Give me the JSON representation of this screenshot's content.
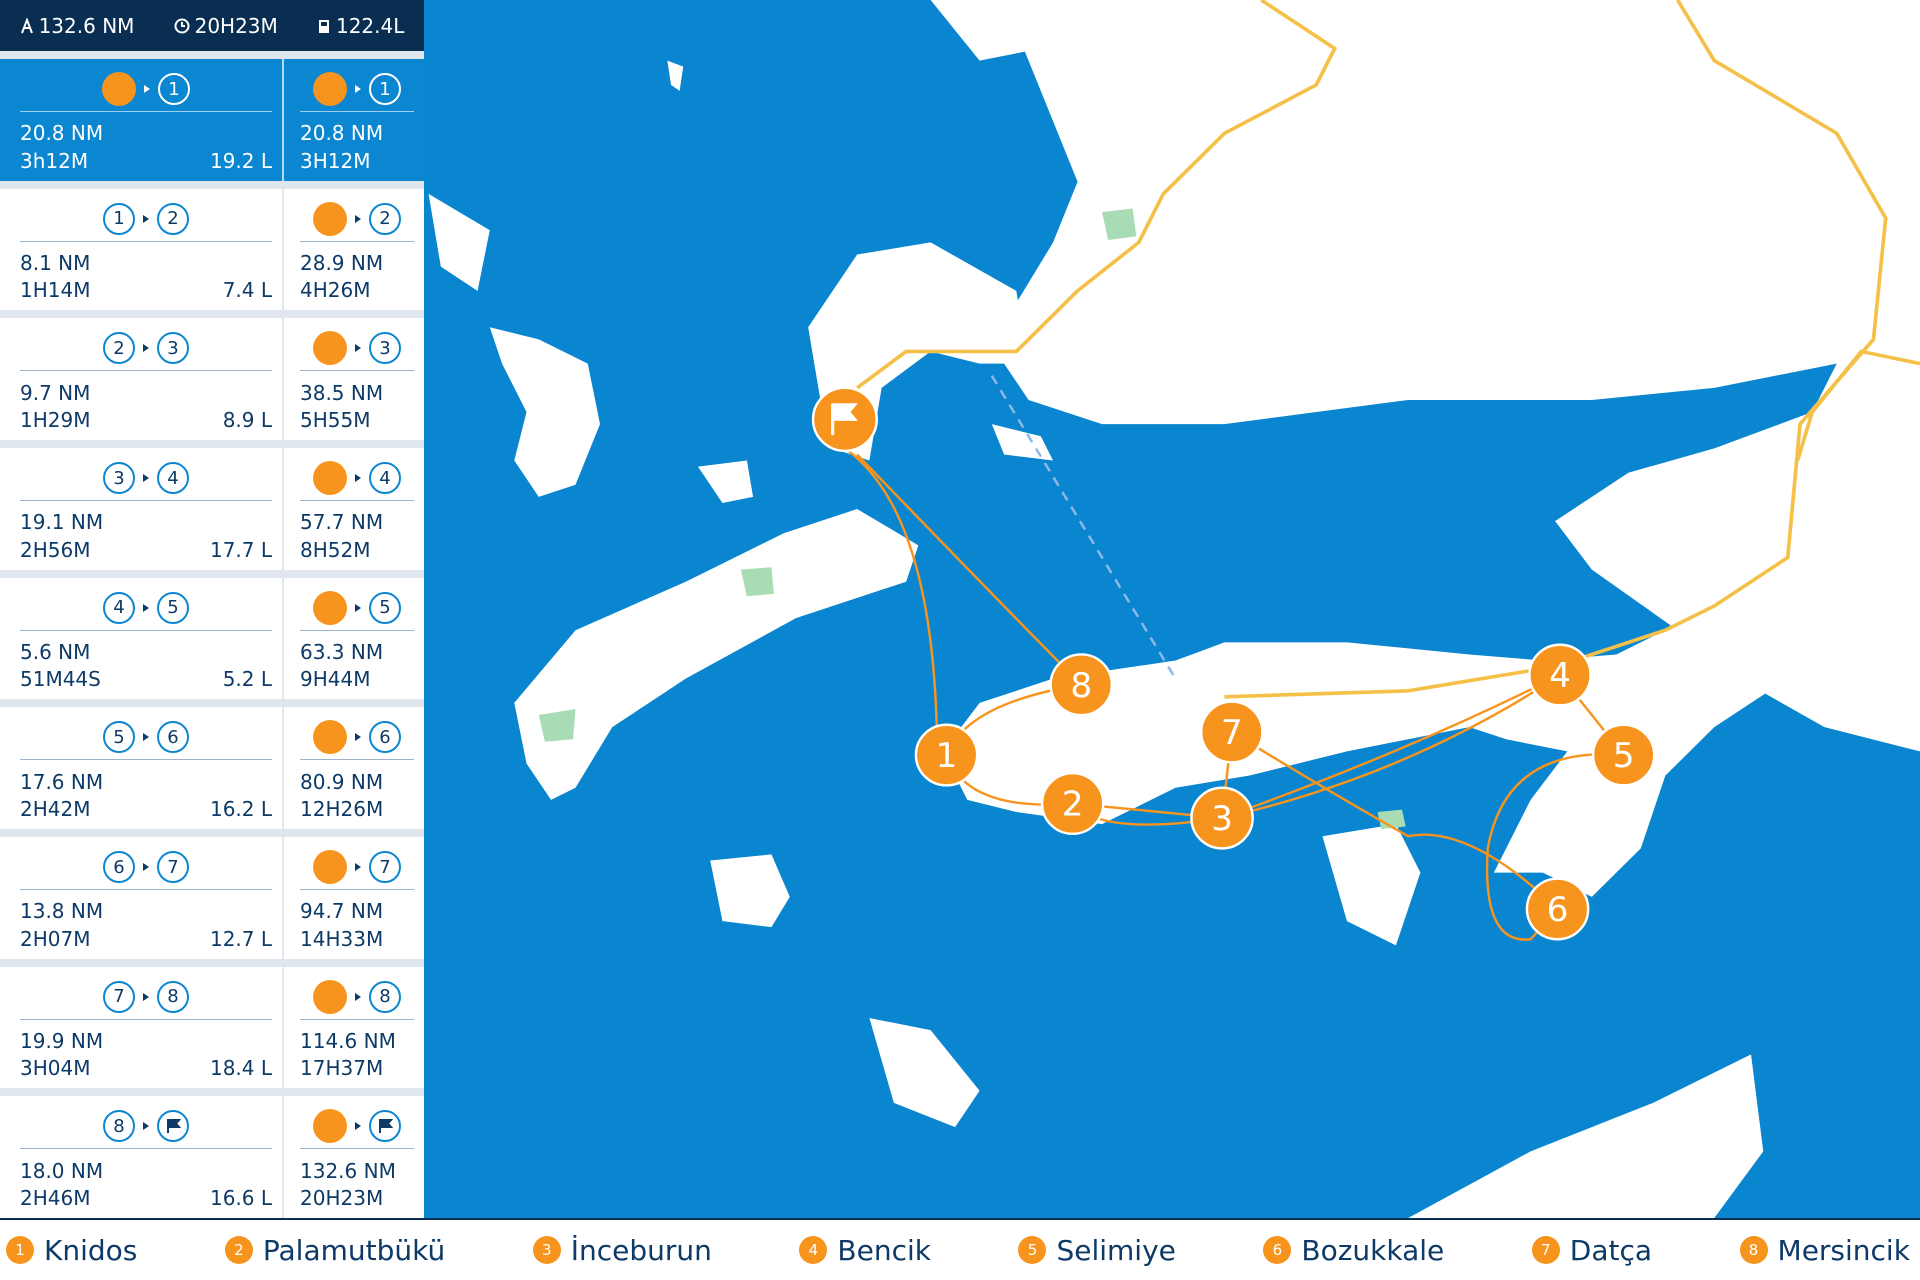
{
  "header": {
    "distance": "132.6 NM",
    "duration": "20H23M",
    "fuel": "122.4L"
  },
  "legs": [
    {
      "from": null,
      "to": 1,
      "distance": "20.8 NM",
      "duration": "3h12M",
      "fuel": "19.2 L",
      "cum_distance": "20.8 NM",
      "cum_duration": "3H12M"
    },
    {
      "from": 1,
      "to": 2,
      "distance": "8.1 NM",
      "duration": "1H14M",
      "fuel": "7.4 L",
      "cum_distance": "28.9 NM",
      "cum_duration": "4H26M"
    },
    {
      "from": 2,
      "to": 3,
      "distance": "9.7 NM",
      "duration": "1H29M",
      "fuel": "8.9 L",
      "cum_distance": "38.5 NM",
      "cum_duration": "5H55M"
    },
    {
      "from": 3,
      "to": 4,
      "distance": "19.1 NM",
      "duration": "2H56M",
      "fuel": "17.7 L",
      "cum_distance": "57.7 NM",
      "cum_duration": "8H52M"
    },
    {
      "from": 4,
      "to": 5,
      "distance": "5.6 NM",
      "duration": "51M44S",
      "fuel": "5.2 L",
      "cum_distance": "63.3 NM",
      "cum_duration": "9H44M"
    },
    {
      "from": 5,
      "to": 6,
      "distance": "17.6 NM",
      "duration": "2H42M",
      "fuel": "16.2 L",
      "cum_distance": "80.9 NM",
      "cum_duration": "12H26M"
    },
    {
      "from": 6,
      "to": 7,
      "distance": "13.8 NM",
      "duration": "2H07M",
      "fuel": "12.7 L",
      "cum_distance": "94.7 NM",
      "cum_duration": "14H33M"
    },
    {
      "from": 7,
      "to": 8,
      "distance": "19.9 NM",
      "duration": "3H04M",
      "fuel": "18.4 L",
      "cum_distance": "114.6 NM",
      "cum_duration": "17H37M"
    },
    {
      "from": 8,
      "to": null,
      "distance": "18.0 NM",
      "duration": "2H46M",
      "fuel": "16.6 L",
      "cum_distance": "132.6 NM",
      "cum_duration": "20H23M"
    }
  ],
  "waypoints": [
    {
      "number": 1,
      "name": "Knidos"
    },
    {
      "number": 2,
      "name": "Palamutbükü"
    },
    {
      "number": 3,
      "name": "İnceburun"
    },
    {
      "number": 4,
      "name": "Bencik"
    },
    {
      "number": 5,
      "name": "Selimiye"
    },
    {
      "number": 6,
      "name": "Bozukkale"
    },
    {
      "number": 7,
      "name": "Datça"
    },
    {
      "number": 8,
      "name": "Mersincik"
    }
  ]
}
